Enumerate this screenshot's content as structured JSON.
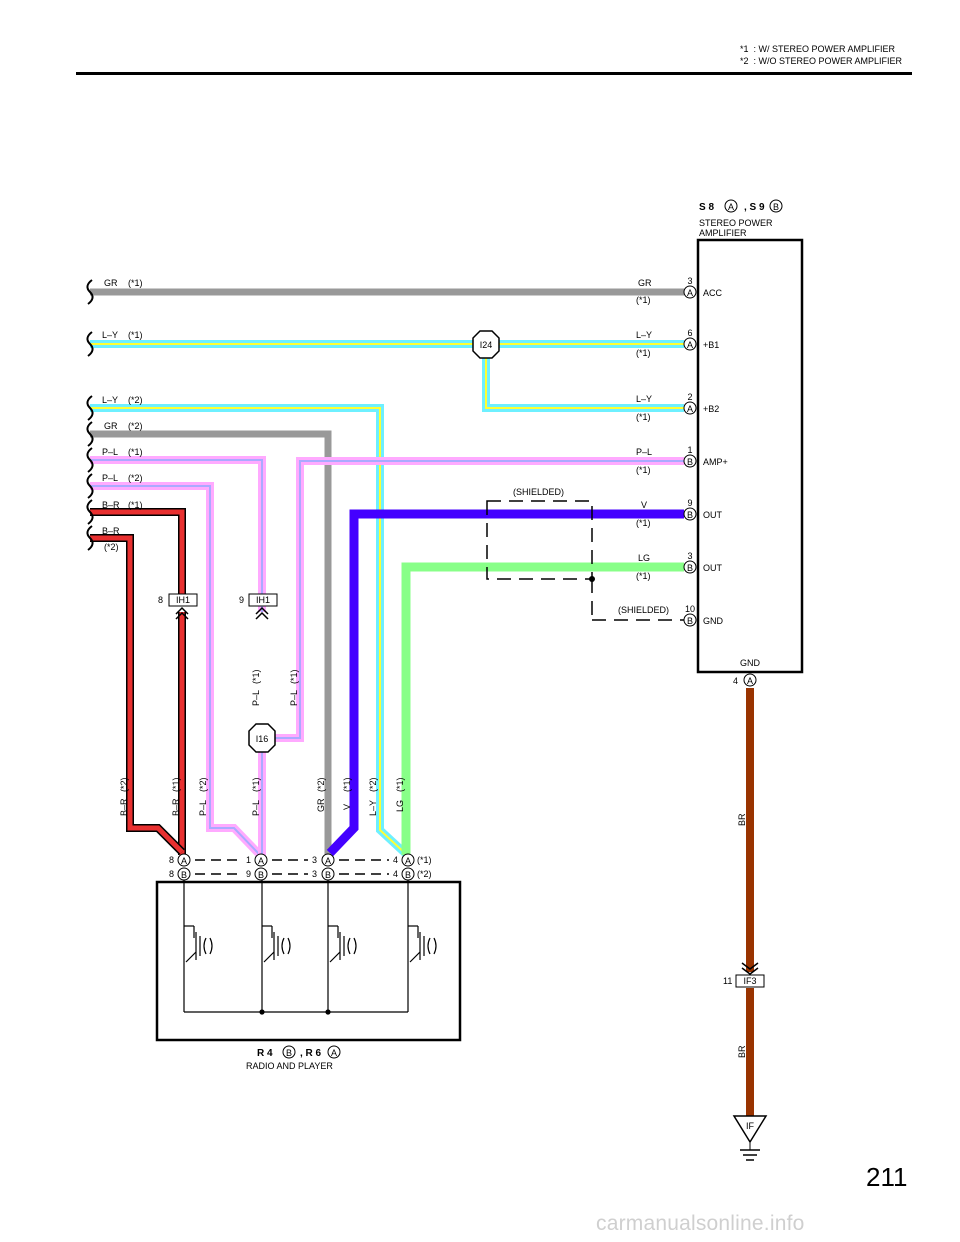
{
  "header": {
    "note1": "*1  : W/ STEREO POWER AMPLIFIER",
    "note2": "*2  : W/O STEREO POWER AMPLIFIER"
  },
  "amplifier": {
    "code1": "S 8",
    "conn1": "A",
    "code2": ", S 9",
    "conn2": "B",
    "name1": "STEREO POWER",
    "name2": "AMPLIFIER",
    "pins": [
      {
        "pin": "3",
        "conn": "A",
        "func": "ACC",
        "wire": "GR",
        "note": "(*1)"
      },
      {
        "pin": "6",
        "conn": "A",
        "func": "+B1",
        "wire": "L–Y",
        "note": "(*1)"
      },
      {
        "pin": "2",
        "conn": "A",
        "func": "+B2",
        "wire": "L–Y",
        "note": "(*1)"
      },
      {
        "pin": "1",
        "conn": "B",
        "func": "AMP+",
        "wire": "P–L",
        "note": "(*1)"
      },
      {
        "pin": "9",
        "conn": "B",
        "func": "OUT",
        "wire": "V",
        "note": "(*1)"
      },
      {
        "pin": "3",
        "conn": "B",
        "func": "OUT",
        "wire": "LG",
        "note": "(*1)"
      },
      {
        "pin": "10",
        "conn": "B",
        "func": "GND",
        "wire": "(SHIELDED)",
        "note": ""
      }
    ],
    "gnd_label": "GND",
    "gnd_pin": "4",
    "gnd_conn": "A"
  },
  "left_labels": [
    {
      "wire": "GR",
      "note": "(*1)"
    },
    {
      "wire": "L–Y",
      "note": "(*1)"
    },
    {
      "wire": "L–Y",
      "note": "(*2)"
    },
    {
      "wire": "GR",
      "note": "(*2)"
    },
    {
      "wire": "P–L",
      "note": "(*1)"
    },
    {
      "wire": "P–L",
      "note": "(*2)"
    },
    {
      "wire": "B–R",
      "note": "(*1)"
    },
    {
      "wire": "B–R",
      "note": "(*2)"
    }
  ],
  "shielded_label": "(SHIELDED)",
  "junctions": {
    "i24": "I24",
    "i16": "I16",
    "ih1": "IH1",
    "ih1_pin_a": "8",
    "ih1_pin_b": "9",
    "if3": "IF3",
    "if3_pin": "11",
    "ground": "IF"
  },
  "vertical_labels": {
    "pl1a": "P–L",
    "pl1a_n": "(*1)",
    "pl1b": "P–L",
    "pl1b_n": "(*1)",
    "br2": "B–R",
    "br2_n": "(*2)",
    "br1": "B–R",
    "br1_n": "(*1)",
    "pl2": "P–L",
    "pl2_n": "(*2)",
    "pl1c": "P–L",
    "pl1c_n": "(*1)",
    "gr2": "GR",
    "gr2_n": "(*2)",
    "v1": "V",
    "v1_n": "(*1)",
    "ly2": "L–Y",
    "ly2_n": "(*2)",
    "lg1": "LG",
    "lg1_n": "(*1)",
    "br_a": "BR",
    "br_b": "BR"
  },
  "radio": {
    "row1_pins": [
      "8",
      "1",
      "3",
      "4"
    ],
    "row1_conn": "A",
    "row1_note": "(*1)",
    "row2_pins": [
      "8",
      "9",
      "3",
      "4"
    ],
    "row2_conn": "B",
    "row2_note": "(*2)",
    "code1": "R 4",
    "conn1": "B",
    "code2": ", R 6",
    "conn2": "A",
    "name": "RADIO AND PLAYER"
  },
  "page_number": "211",
  "watermark": "carmanualsonline.info",
  "colors": {
    "GR": "#999999",
    "L-Y": "#6ef0ff",
    "L-Y-stripe": "#ffff33",
    "P-L": "#ffaaff",
    "P-L-stripe": "#aaaaff",
    "V": "#4400ff",
    "LG": "#88ff88",
    "B-R": "#e83030",
    "BR": "#993300"
  }
}
